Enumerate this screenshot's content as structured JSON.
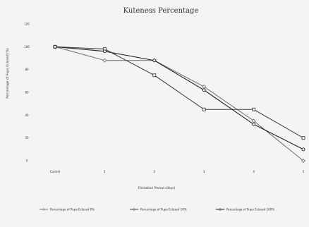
{
  "chart_data": {
    "type": "line",
    "title": "Kuteness Percentage",
    "xlabel": "Oxidation Period (days)",
    "ylabel": "Percentage of Pupa Eclosed (%)",
    "categories": [
      "Control",
      "1",
      "2",
      "3",
      "4",
      "5"
    ],
    "ylim": [
      0,
      120
    ],
    "yticks": [
      "0",
      "20",
      "40",
      "60",
      "80",
      "100",
      "120"
    ],
    "yticks_values": [
      0,
      20,
      40,
      60,
      80,
      100,
      120
    ],
    "grid": false,
    "legend_position": "bottom",
    "series": [
      {
        "name": "Percentage of Pupa Eclosed 0%",
        "values": [
          100,
          88,
          88,
          65,
          35,
          0
        ],
        "color": "#777777"
      },
      {
        "name": "Percentage of Pupa Eclosed 10%",
        "values": [
          100,
          98,
          75,
          45,
          45,
          20
        ],
        "color": "#444444"
      },
      {
        "name": "Percentage of Pupa Eclosed 100%",
        "values": [
          100,
          96,
          88,
          62,
          32,
          10
        ],
        "color": "#222222"
      }
    ]
  }
}
